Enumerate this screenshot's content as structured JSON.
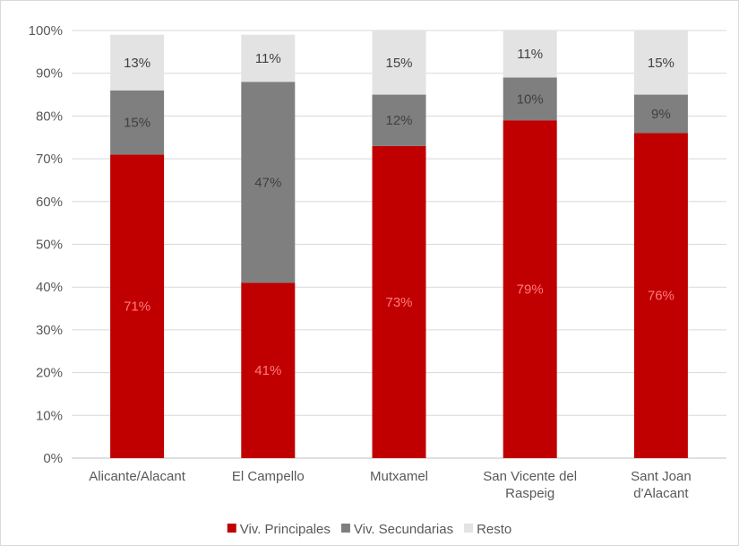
{
  "chart_data": {
    "type": "bar",
    "stacked": true,
    "title": "",
    "xlabel": "",
    "ylabel": "",
    "ylim": [
      0,
      100
    ],
    "y_ticks": [
      "0%",
      "10%",
      "20%",
      "30%",
      "40%",
      "50%",
      "60%",
      "70%",
      "80%",
      "90%",
      "100%"
    ],
    "grid": true,
    "legend_position": "bottom",
    "categories": [
      [
        "Alicante/Alacant"
      ],
      [
        "El Campello"
      ],
      [
        "Mutxamel"
      ],
      [
        "San Vicente del",
        "Raspeig"
      ],
      [
        "Sant Joan",
        "d'Alacant"
      ]
    ],
    "series": [
      {
        "name": "Viv. Principales",
        "color": "#c00000",
        "label_color": "#ff7b7b",
        "values": [
          71,
          41,
          73,
          79,
          76
        ],
        "labels": [
          "71%",
          "41%",
          "73%",
          "79%",
          "76%"
        ]
      },
      {
        "name": "Viv. Secundarias",
        "color": "#7f7f7f",
        "label_color": "#404040",
        "values": [
          15,
          47,
          12,
          10,
          9
        ],
        "labels": [
          "15%",
          "47%",
          "12%",
          "10%",
          "9%"
        ]
      },
      {
        "name": "Resto",
        "color": "#e3e3e3",
        "label_color": "#404040",
        "values": [
          13,
          11,
          15,
          11,
          15
        ],
        "labels": [
          "13%",
          "11%",
          "15%",
          "11%",
          "15%"
        ]
      }
    ]
  }
}
